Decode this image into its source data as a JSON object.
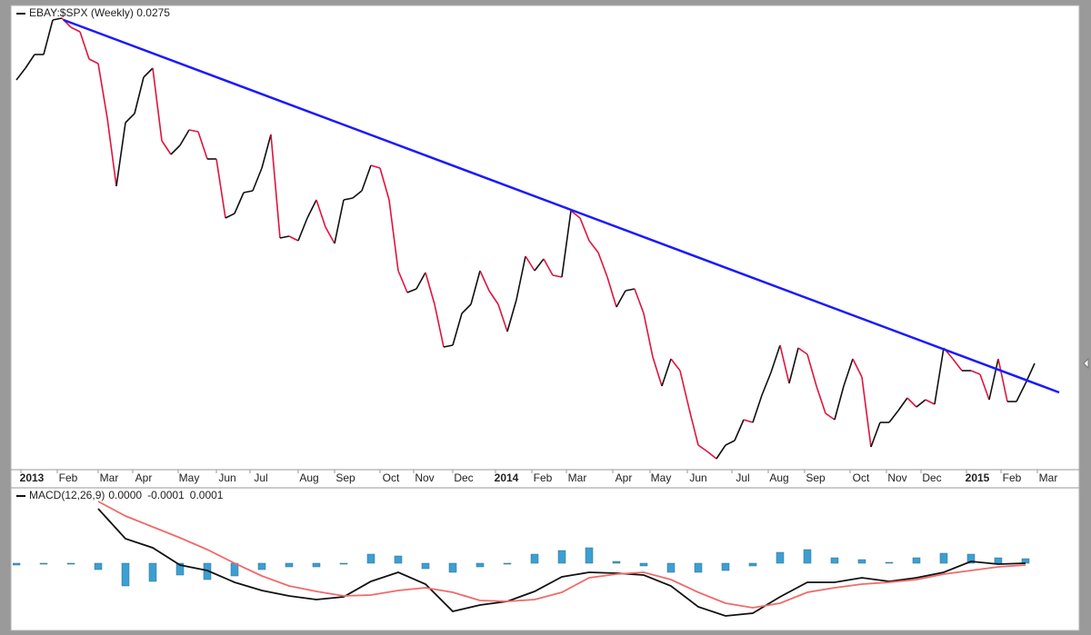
{
  "chart_data": [
    {
      "type": "line",
      "title": "EBAY:$SPX (Weekly) 0.0275",
      "values": [
        0.03374,
        0.034,
        0.0343,
        0.0343,
        0.03506,
        0.0351,
        0.0349,
        0.0348,
        0.0342,
        0.0341,
        0.0329,
        0.0314,
        0.0328,
        0.033,
        0.0338,
        0.034,
        0.0324,
        0.0321,
        0.0323,
        0.03264,
        0.0326,
        0.032,
        0.032,
        0.0307,
        0.0308,
        0.03126,
        0.0313,
        0.0318,
        0.03254,
        0.03026,
        0.0303,
        0.0302,
        0.0307,
        0.0311,
        0.0305,
        0.03014,
        0.0311,
        0.03114,
        0.0313,
        0.03186,
        0.0318,
        0.0311,
        0.02954,
        0.02906,
        0.02914,
        0.0295,
        0.0288,
        0.02786,
        0.0279,
        0.0286,
        0.0288,
        0.02954,
        0.0291,
        0.0288,
        0.0282,
        0.0289,
        0.02986,
        0.02954,
        0.0298,
        0.02944,
        0.0294,
        0.03086,
        0.0307,
        0.0302,
        0.02994,
        0.0294,
        0.02874,
        0.0291,
        0.02914,
        0.0286,
        0.02764,
        0.027,
        0.0276,
        0.02734,
        0.0265,
        0.0257,
        0.02556,
        0.0254,
        0.0257,
        0.0258,
        0.02626,
        0.0262,
        0.0268,
        0.0273,
        0.0279,
        0.02706,
        0.02784,
        0.0277,
        0.027,
        0.0264,
        0.02626,
        0.027,
        0.0276,
        0.0272,
        0.02566,
        0.0262,
        0.0262,
        0.02646,
        0.02674,
        0.02654,
        0.0267,
        0.0266,
        0.02784,
        0.0276,
        0.02734,
        0.02734,
        0.02726,
        0.0267,
        0.0276,
        0.02666,
        0.02666,
        0.02706,
        0.0275
      ],
      "up_color": "#111111",
      "down_color": "#e0143c",
      "xlim": [
        -0.4,
        116.7
      ],
      "ylim": [
        0.0252,
        0.0353
      ],
      "xticks": [
        {
          "value": 1.7,
          "label": "2013"
        },
        {
          "value": 5.7,
          "label": "Feb"
        },
        {
          "value": 10.2,
          "label": "Mar"
        },
        {
          "value": 14,
          "label": "Apr"
        },
        {
          "value": 19,
          "label": "May"
        },
        {
          "value": 23.2,
          "label": "Jun"
        },
        {
          "value": 26.9,
          "label": "Jul"
        },
        {
          "value": 32.2,
          "label": "Aug"
        },
        {
          "value": 36.2,
          "label": "Sep"
        },
        {
          "value": 41.2,
          "label": "Oct"
        },
        {
          "value": 44.9,
          "label": "Nov"
        },
        {
          "value": 49.2,
          "label": "Dec"
        },
        {
          "value": 53.9,
          "label": "2014"
        },
        {
          "value": 57.9,
          "label": "Feb"
        },
        {
          "value": 61.7,
          "label": "Mar"
        },
        {
          "value": 66.8,
          "label": "Apr"
        },
        {
          "value": 70.9,
          "label": "May"
        },
        {
          "value": 75,
          "label": "Jun"
        },
        {
          "value": 79.9,
          "label": "Jul"
        },
        {
          "value": 83.9,
          "label": "Aug"
        },
        {
          "value": 87.9,
          "label": "Sep"
        },
        {
          "value": 92.9,
          "label": "Oct"
        },
        {
          "value": 96.9,
          "label": "Nov"
        },
        {
          "value": 100.7,
          "label": "Dec"
        },
        {
          "value": 105.7,
          "label": "2015"
        },
        {
          "value": 109.5,
          "label": "Feb"
        },
        {
          "value": 113.5,
          "label": "Mar"
        }
      ],
      "trendline": {
        "x": [
          5.2,
          114.7
        ],
        "values": [
          0.03506,
          0.02686
        ],
        "color": "#1a1aff"
      }
    },
    {
      "type": "macd",
      "legend": {
        "label": "MACD(12,26,9)",
        "values": [
          {
            "value": 0,
            "label": "0.0000"
          },
          {
            "value": -0.0001,
            "label": "-0.0001"
          },
          {
            "value": 0.0001,
            "label": "0.0001"
          }
        ]
      },
      "x": [
        0,
        3,
        6,
        9,
        12,
        15,
        18,
        21,
        24,
        27,
        30,
        33,
        36,
        39,
        42,
        45,
        48,
        51,
        54,
        57,
        60,
        63,
        66,
        69,
        72,
        75,
        78,
        81,
        84,
        87,
        90,
        93,
        96,
        99,
        102,
        105,
        108,
        111
      ],
      "series": [
        {
          "color": "#111111",
          "type": "line",
          "values": [
            null,
            null,
            null,
            0.00024,
            0.000108,
            6.8e-05,
            -8e-06,
            -3.2e-05,
            -8.4e-05,
            -0.00012,
            -0.000144,
            -0.00016,
            -0.000148,
            -8e-05,
            -4e-05,
            -9.2e-05,
            -0.000212,
            -0.000184,
            -0.000168,
            -0.000124,
            -6e-05,
            -4e-05,
            -4.4e-05,
            -5.2e-05,
            -0.0001,
            -0.000192,
            -0.000232,
            -0.00022,
            -0.000148,
            -8.4e-05,
            -8.4e-05,
            -6.4e-05,
            -8e-05,
            -6.4e-05,
            -4e-05,
            8e-06,
            -4e-06,
            0
          ]
        },
        {
          "color": "#f06a6a",
          "type": "line",
          "values": [
            null,
            null,
            null,
            0.000272,
            0.000208,
            0.00016,
            0.000112,
            6e-05,
            0,
            -5.6e-05,
            -0.0001,
            -0.000124,
            -0.000144,
            -0.00014,
            -0.00012,
            -0.000108,
            -0.000128,
            -0.000164,
            -0.000168,
            -0.00016,
            -0.000128,
            -6.4e-05,
            -4.8e-05,
            -4e-05,
            -7.2e-05,
            -0.000128,
            -0.000176,
            -0.000196,
            -0.000176,
            -0.000128,
            -0.000108,
            -9.2e-05,
            -8.4e-05,
            -7.2e-05,
            -4.8e-05,
            -3.2e-05,
            -1.6e-05,
            -8e-06
          ]
        },
        {
          "color": "#3d9fd1",
          "type": "bar",
          "values": [
            -8e-06,
            -4e-06,
            -4e-06,
            -2.8e-05,
            -0.0001,
            -8e-05,
            -5.2e-05,
            -7.2e-05,
            -5.6e-05,
            -2.8e-05,
            -1.6e-05,
            -1.6e-05,
            0,
            4e-05,
            3.2e-05,
            -2.4e-05,
            -4e-05,
            -1.6e-05,
            -4e-06,
            4e-05,
            5.6e-05,
            6.8e-05,
            8e-06,
            -1.2e-05,
            -4e-05,
            -4e-05,
            -3.2e-05,
            -1.2e-05,
            4.8e-05,
            6e-05,
            2.4e-05,
            1.6e-05,
            4e-06,
            2.4e-05,
            4.4e-05,
            4e-05,
            2.4e-05,
            2e-05
          ]
        }
      ],
      "xlim": [
        -0.4,
        116.7
      ],
      "ylim": [
        -0.000288,
        0.00032
      ]
    }
  ]
}
